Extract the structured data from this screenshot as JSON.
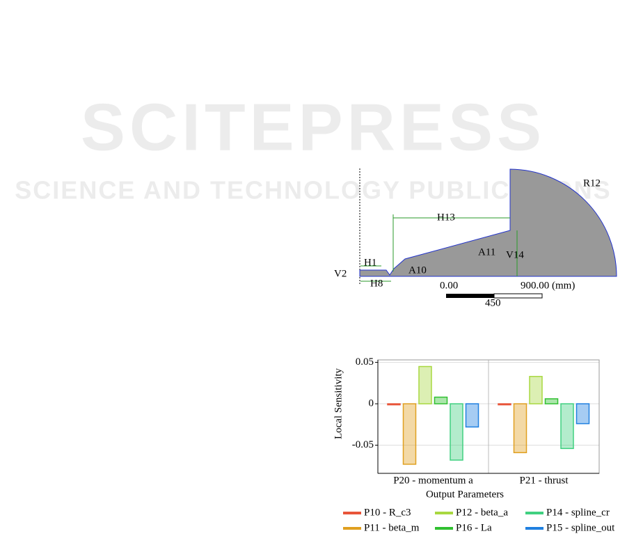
{
  "watermark": {
    "title": "SCITEPRESS",
    "subtitle": "SCIENCE AND TECHNOLOGY PUBLICATIONS"
  },
  "sketch": {
    "labels": [
      "R12",
      "H13",
      "A11",
      "V14",
      "H1",
      "V2",
      "H8",
      "A10"
    ],
    "scale_start": "0.00",
    "scale_end": "900.00 (mm)",
    "scale_mid": "450"
  },
  "chart_data": {
    "type": "bar",
    "ylabel": "Local Sensitivity",
    "xlabel": "Output Parameters",
    "categories": [
      "P20 - momentum a",
      "P21 - thrust"
    ],
    "series": [
      {
        "name": "P10 - R_c3",
        "color": "#e8553a",
        "values": [
          -0.001,
          -0.001
        ]
      },
      {
        "name": "P11 - beta_m",
        "color": "#e0a020",
        "values": [
          -0.073,
          -0.059
        ]
      },
      {
        "name": "P12 - beta_a",
        "color": "#a8d840",
        "values": [
          0.045,
          0.033
        ]
      },
      {
        "name": "P16 - La",
        "color": "#30c030",
        "values": [
          0.008,
          0.006
        ]
      },
      {
        "name": "P14 - spline_cr",
        "color": "#40d080",
        "values": [
          -0.068,
          -0.054
        ]
      },
      {
        "name": "P15 - spline_out",
        "color": "#2080e0",
        "values": [
          -0.028,
          -0.024
        ]
      }
    ],
    "ylim": [
      -0.084,
      0.053
    ],
    "yticks": [
      -0.05,
      0,
      0.05
    ]
  }
}
